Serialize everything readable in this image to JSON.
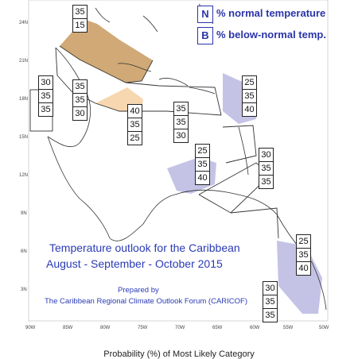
{
  "legend": {
    "items": [
      {
        "key": "N",
        "label": "% normal temperature"
      },
      {
        "key": "B",
        "label": "% below-normal temp."
      }
    ]
  },
  "title": {
    "line1": "Temperature outlook for the Caribbean",
    "line2": "August - September - October 2015"
  },
  "credit": {
    "line1": "Prepared by",
    "line2": "The Caribbean Regional Climate Outlook Forum (CARICOF)"
  },
  "footer": "Probability (%) of Most Likely Category",
  "axes": {
    "lat_labels": [
      "24N",
      "21N",
      "18N",
      "15N",
      "12N",
      "9N",
      "6N",
      "3N"
    ],
    "lon_labels": [
      "90W",
      "85W",
      "80W",
      "75W",
      "70W",
      "65W",
      "60W",
      "55W",
      "50W"
    ]
  },
  "colors": {
    "above_normal_shade": "#c89a5e",
    "light_above_shade": "#f6d7b0",
    "below_normal_shade": "#c4c3e6",
    "text_blue": "#2b35a8"
  },
  "probability_stacks": [
    {
      "name": "top-bahamas",
      "values": [
        "35",
        "15"
      ]
    },
    {
      "name": "western-caribbean",
      "values": [
        "30",
        "35",
        "35"
      ]
    },
    {
      "name": "cayman-jamaica",
      "values": [
        "35",
        "35",
        "30"
      ]
    },
    {
      "name": "cuba-south",
      "values": [
        "40",
        "35",
        "25"
      ]
    },
    {
      "name": "hispaniola",
      "values": [
        "35",
        "35",
        "30"
      ]
    },
    {
      "name": "leeward-islands",
      "values": [
        "25",
        "35",
        "40"
      ]
    },
    {
      "name": "abc-islands",
      "values": [
        "25",
        "35",
        "40"
      ]
    },
    {
      "name": "windward-islands",
      "values": [
        "30",
        "35",
        "35"
      ]
    },
    {
      "name": "guianas",
      "values": [
        "25",
        "35",
        "40"
      ]
    },
    {
      "name": "northern-south-america",
      "values": [
        "30",
        "35",
        "35"
      ]
    }
  ]
}
